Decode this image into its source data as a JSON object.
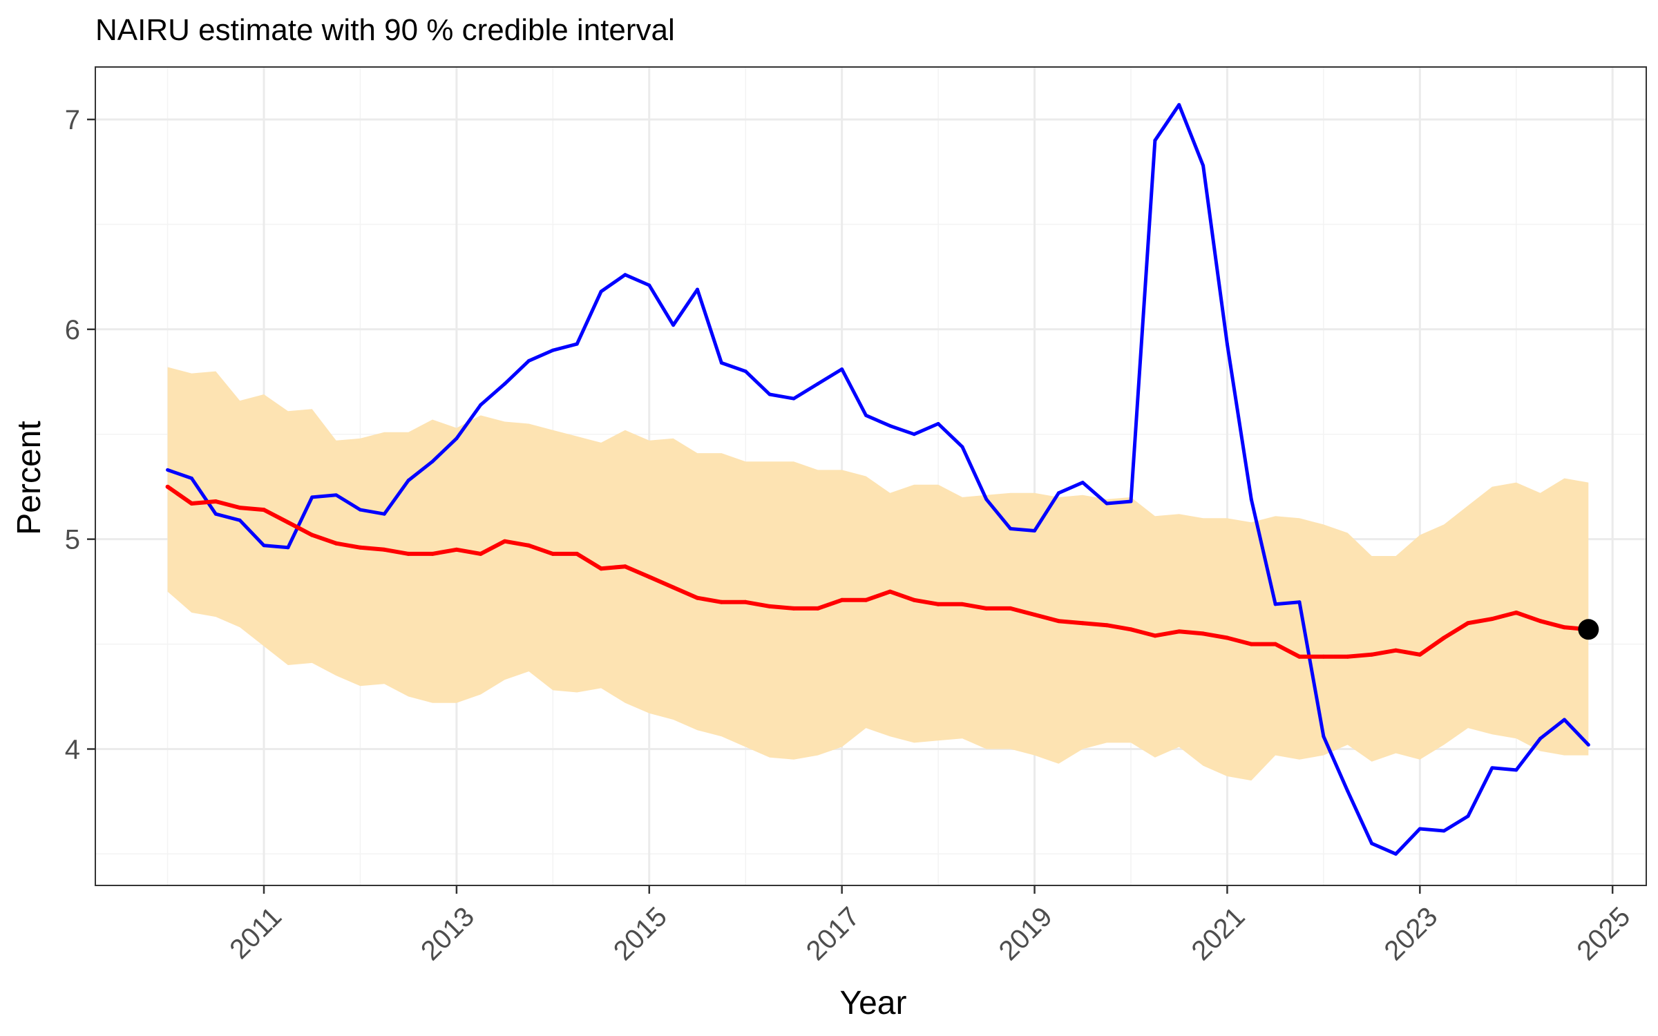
{
  "chart_data": {
    "type": "line",
    "title": "NAIRU estimate with 90 % credible interval",
    "xlabel": "Year",
    "ylabel": "Percent",
    "xlim": [
      2009.25,
      2025.35
    ],
    "ylim": [
      3.35,
      7.25
    ],
    "x_ticks": [
      2011,
      2013,
      2015,
      2017,
      2019,
      2021,
      2023,
      2025
    ],
    "x_tick_labels": [
      "2011",
      "2013",
      "2015",
      "2017",
      "2019",
      "2021",
      "2023",
      "2025"
    ],
    "y_ticks": [
      4,
      5,
      6,
      7
    ],
    "y_tick_labels": [
      "4",
      "5",
      "6",
      "7"
    ],
    "grid": true,
    "legend": "none",
    "colors": {
      "nairu_line": "#ff0000",
      "unemployment_line": "#0000ff",
      "band_fill": "#fde3b2",
      "end_point": "#000000",
      "grid_major": "#ebebeb",
      "grid_minor": "#f3f3f3",
      "panel_border": "#333333"
    },
    "x": [
      2010.0,
      2010.25,
      2010.5,
      2010.75,
      2011.0,
      2011.25,
      2011.5,
      2011.75,
      2012.0,
      2012.25,
      2012.5,
      2012.75,
      2013.0,
      2013.25,
      2013.5,
      2013.75,
      2014.0,
      2014.25,
      2014.5,
      2014.75,
      2015.0,
      2015.25,
      2015.5,
      2015.75,
      2016.0,
      2016.25,
      2016.5,
      2016.75,
      2017.0,
      2017.25,
      2017.5,
      2017.75,
      2018.0,
      2018.25,
      2018.5,
      2018.75,
      2019.0,
      2019.25,
      2019.5,
      2019.75,
      2020.0,
      2020.25,
      2020.5,
      2020.75,
      2021.0,
      2021.25,
      2021.5,
      2021.75,
      2022.0,
      2022.25,
      2022.5,
      2022.75,
      2023.0,
      2023.25,
      2023.5,
      2023.75,
      2024.0,
      2024.25,
      2024.5,
      2024.75
    ],
    "series": [
      {
        "name": "",
        "role": "credible_interval",
        "lower": [
          4.75,
          4.65,
          4.63,
          4.58,
          4.49,
          4.4,
          4.41,
          4.35,
          4.3,
          4.31,
          4.25,
          4.22,
          4.22,
          4.26,
          4.33,
          4.37,
          4.28,
          4.27,
          4.29,
          4.22,
          4.17,
          4.14,
          4.09,
          4.06,
          4.01,
          3.96,
          3.95,
          3.97,
          4.01,
          4.1,
          4.06,
          4.03,
          4.04,
          4.05,
          4.0,
          4.0,
          3.97,
          3.93,
          4.0,
          4.03,
          4.03,
          3.96,
          4.01,
          3.92,
          3.87,
          3.85,
          3.97,
          3.95,
          3.97,
          4.02,
          3.94,
          3.98,
          3.95,
          4.02,
          4.1,
          4.07,
          4.05,
          3.99,
          3.97,
          3.97
        ],
        "upper": [
          5.82,
          5.79,
          5.8,
          5.66,
          5.69,
          5.61,
          5.62,
          5.47,
          5.48,
          5.51,
          5.51,
          5.57,
          5.53,
          5.59,
          5.56,
          5.55,
          5.52,
          5.49,
          5.46,
          5.52,
          5.47,
          5.48,
          5.41,
          5.41,
          5.37,
          5.37,
          5.37,
          5.33,
          5.33,
          5.3,
          5.22,
          5.26,
          5.26,
          5.2,
          5.21,
          5.22,
          5.22,
          5.2,
          5.21,
          5.19,
          5.2,
          5.11,
          5.12,
          5.1,
          5.1,
          5.08,
          5.11,
          5.1,
          5.07,
          5.03,
          4.92,
          4.92,
          5.02,
          5.07,
          5.16,
          5.25,
          5.27,
          5.22,
          5.29,
          5.27
        ]
      },
      {
        "name": "",
        "role": "unemployment",
        "values": [
          5.33,
          5.29,
          5.12,
          5.09,
          4.97,
          4.96,
          5.2,
          5.21,
          5.14,
          5.12,
          5.28,
          5.37,
          5.48,
          5.64,
          5.74,
          5.85,
          5.9,
          5.93,
          6.18,
          6.26,
          6.21,
          6.02,
          6.19,
          5.84,
          5.8,
          5.69,
          5.67,
          5.74,
          5.81,
          5.59,
          5.54,
          5.5,
          5.55,
          5.44,
          5.19,
          5.05,
          5.04,
          5.22,
          5.27,
          5.17,
          5.18,
          6.9,
          7.07,
          6.78,
          5.93,
          5.19,
          4.69,
          4.7,
          4.06,
          3.8,
          3.55,
          3.5,
          3.62,
          3.61,
          3.68,
          3.91,
          3.9,
          4.05,
          4.14,
          4.02
        ]
      },
      {
        "name": "",
        "role": "nairu",
        "values": [
          5.25,
          5.17,
          5.18,
          5.15,
          5.14,
          5.08,
          5.02,
          4.98,
          4.96,
          4.95,
          4.93,
          4.93,
          4.95,
          4.93,
          4.99,
          4.97,
          4.93,
          4.93,
          4.86,
          4.87,
          4.82,
          4.77,
          4.72,
          4.7,
          4.7,
          4.68,
          4.67,
          4.67,
          4.71,
          4.71,
          4.75,
          4.71,
          4.69,
          4.69,
          4.67,
          4.67,
          4.64,
          4.61,
          4.6,
          4.59,
          4.57,
          4.54,
          4.56,
          4.55,
          4.53,
          4.5,
          4.5,
          4.44,
          4.44,
          4.44,
          4.45,
          4.47,
          4.45,
          4.53,
          4.6,
          4.62,
          4.65,
          4.61,
          4.58,
          4.57
        ]
      }
    ],
    "end_point": {
      "x": 2024.75,
      "y": 4.57
    }
  }
}
